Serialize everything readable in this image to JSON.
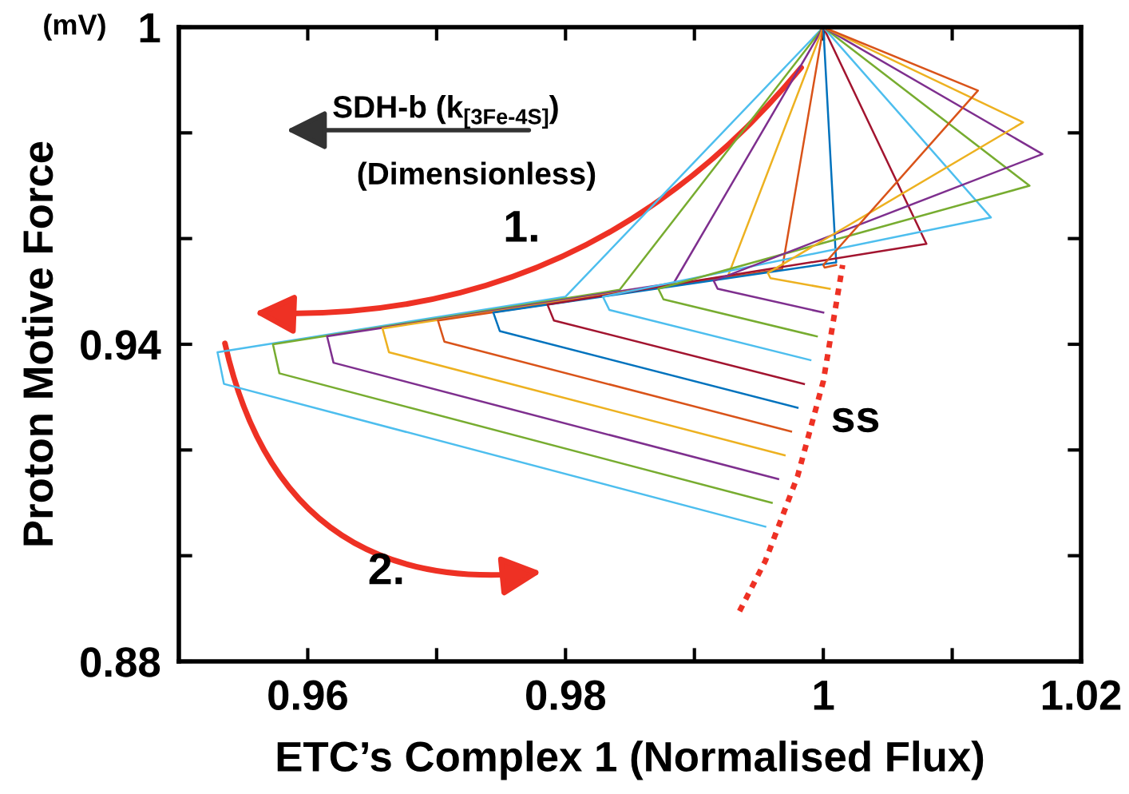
{
  "chart_data": {
    "type": "line",
    "xlabel": "ETC’s Complex 1 (Normalised Flux)",
    "ylabel": "Proton Motive Force",
    "annotations": [
      "(mV)",
      "SDH-b (k$_{[3Fe-4S]}$)",
      "(Dimensionless)",
      "1.",
      "2.",
      "ss"
    ],
    "xlim": [
      0.95,
      1.02
    ],
    "ylim": [
      0.88,
      1.0
    ],
    "xticks": [
      0.96,
      {
        "value": 0.97,
        "label": null
      },
      0.98,
      {
        "value": 0.99,
        "label": null
      },
      1,
      {
        "value": 1.01,
        "label": null
      },
      1.02
    ],
    "yticks": [
      0.88,
      {
        "value": 0.9,
        "label": null
      },
      {
        "value": 0.92,
        "label": null
      },
      0.94,
      {
        "value": 0.96,
        "label": null
      },
      {
        "value": 0.98,
        "label": null
      },
      1
    ],
    "grid": false,
    "legend": false,
    "marker": "none",
    "series": [
      {
        "color": "#4dbeee",
        "x": [
          1.0,
          0.98,
          0.953,
          0.9535,
          0.9955
        ],
        "values": [
          1.0,
          0.949,
          0.9385,
          0.9325,
          0.9055
        ]
      },
      {
        "color": "#77ac30",
        "x": [
          1.0,
          0.9842,
          0.9573,
          0.9578,
          0.996
        ],
        "values": [
          1.0,
          0.9503,
          0.94,
          0.9345,
          0.91
        ]
      },
      {
        "color": "#7e2f8e",
        "x": [
          1.0,
          0.9884,
          0.9615,
          0.962,
          0.9965
        ],
        "values": [
          1.0,
          0.9516,
          0.9415,
          0.9365,
          0.9145
        ]
      },
      {
        "color": "#edb120",
        "x": [
          1.0,
          0.9926,
          0.9658,
          0.9663,
          0.997
        ],
        "values": [
          1.0,
          0.9529,
          0.943,
          0.9385,
          0.919
        ]
      },
      {
        "color": "#d95319",
        "x": [
          1.0,
          0.9968,
          0.9701,
          0.9706,
          0.9975
        ],
        "values": [
          1.0,
          0.9542,
          0.9445,
          0.9405,
          0.9235
        ]
      },
      {
        "color": "#0072bd",
        "x": [
          1.0,
          1.001,
          0.9744,
          0.9749,
          0.998
        ],
        "values": [
          1.0,
          0.9555,
          0.946,
          0.9425,
          0.928
        ]
      },
      {
        "color": "#a2142f",
        "x": [
          1.0,
          1.008,
          0.9786,
          0.9791,
          0.9985
        ],
        "values": [
          1.0,
          0.959,
          0.9475,
          0.9445,
          0.9325
        ]
      },
      {
        "color": "#4dbeee",
        "x": [
          1.0,
          1.013,
          0.9829,
          0.9834,
          0.999
        ],
        "values": [
          1.0,
          0.964,
          0.949,
          0.9465,
          0.937
        ]
      },
      {
        "color": "#77ac30",
        "x": [
          1.0,
          1.016,
          0.9872,
          0.9876,
          0.9995
        ],
        "values": [
          1.0,
          0.97,
          0.9505,
          0.9485,
          0.9415
        ]
      },
      {
        "color": "#7e2f8e",
        "x": [
          1.0,
          1.017,
          0.9915,
          0.9918,
          1.0
        ],
        "values": [
          1.0,
          0.976,
          0.952,
          0.9505,
          0.946
        ]
      },
      {
        "color": "#edb120",
        "x": [
          1.0,
          1.0155,
          0.9957,
          0.9959,
          1.0005
        ],
        "values": [
          1.0,
          0.982,
          0.9535,
          0.9525,
          0.9505
        ]
      },
      {
        "color": "#d95319",
        "x": [
          1.0,
          1.012,
          1.0,
          1.0001,
          1.001
        ],
        "values": [
          1.0,
          0.988,
          0.955,
          0.9545,
          0.955
        ]
      },
      {
        "color": "#ee3124",
        "line_style": "dotted",
        "x": [
          0.9935,
          0.9955,
          0.998,
          1.0,
          1.0015
        ],
        "values": [
          0.8895,
          0.899,
          0.915,
          0.933,
          0.955
        ]
      }
    ]
  }
}
